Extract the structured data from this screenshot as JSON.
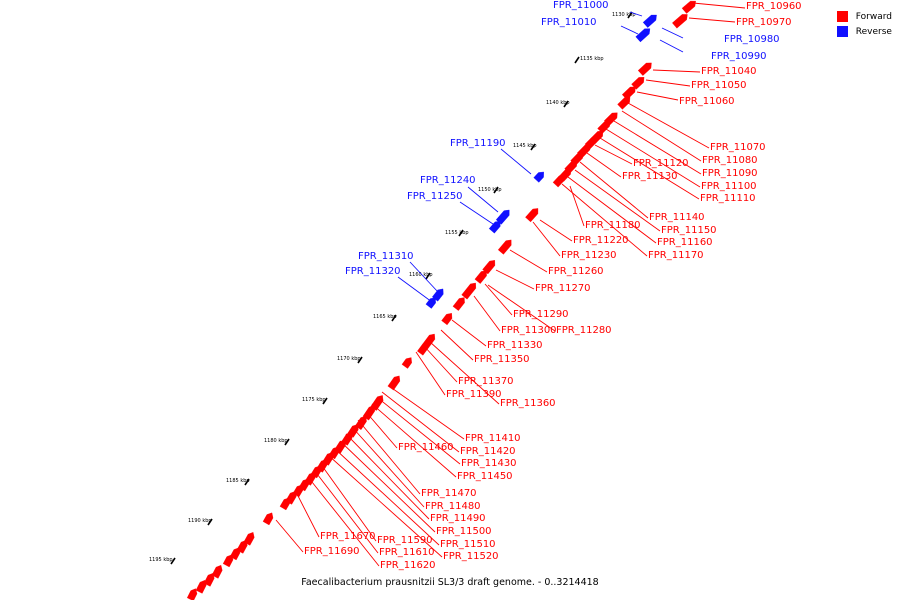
{
  "colors": {
    "forward": "#ff0000",
    "reverse": "#1010ff",
    "backbone": "#777777",
    "tick": "#000000"
  },
  "legend": {
    "forward_label": "Forward",
    "reverse_label": "Reverse"
  },
  "caption": "Faecalibacterium prausnitzii SL3/3 draft genome. - 0..3214418",
  "ticks": [
    {
      "label": "1130 kbp",
      "major": true
    },
    {
      "label": "1135 kbp",
      "major": true
    },
    {
      "label": "1140 kbp",
      "major": true
    },
    {
      "label": "1145 kbp",
      "major": true
    },
    {
      "label": "1150 kbp",
      "major": true
    },
    {
      "label": "1155 kbp",
      "major": true
    },
    {
      "label": "1160 kbp",
      "major": true
    },
    {
      "label": "1165 kbp",
      "major": true
    },
    {
      "label": "1170 kbp",
      "major": true
    },
    {
      "label": "1175 kbp",
      "major": true
    },
    {
      "label": "1180 kbp",
      "major": true
    },
    {
      "label": "1185 kbp",
      "major": true
    },
    {
      "label": "1190 kbp",
      "major": true
    },
    {
      "label": "1195 kbp",
      "major": true
    }
  ],
  "reverse_features": [
    {
      "label": "FPR_11000"
    },
    {
      "label": "FPR_11010"
    },
    {
      "label": "FPR_10980"
    },
    {
      "label": "FPR_10990"
    },
    {
      "label": "FPR_11190"
    },
    {
      "label": "FPR_11240"
    },
    {
      "label": "FPR_11250"
    },
    {
      "label": "FPR_11310"
    },
    {
      "label": "FPR_11320"
    }
  ],
  "forward_features": [
    {
      "label": "FPR_10960"
    },
    {
      "label": "FPR_10970"
    },
    {
      "label": "FPR_11040"
    },
    {
      "label": "FPR_11050"
    },
    {
      "label": "FPR_11060"
    },
    {
      "label": "FPR_11070"
    },
    {
      "label": "FPR_11080"
    },
    {
      "label": "FPR_11090"
    },
    {
      "label": "FPR_11100"
    },
    {
      "label": "FPR_11110"
    },
    {
      "label": "FPR_11120"
    },
    {
      "label": "FPR_11130"
    },
    {
      "label": "FPR_11140"
    },
    {
      "label": "FPR_11150"
    },
    {
      "label": "FPR_11160"
    },
    {
      "label": "FPR_11170"
    },
    {
      "label": "FPR_11180"
    },
    {
      "label": "FPR_11220"
    },
    {
      "label": "FPR_11230"
    },
    {
      "label": "FPR_11260"
    },
    {
      "label": "FPR_11270"
    },
    {
      "label": "FPR_11290"
    },
    {
      "label": "FPR_11300"
    },
    {
      "label": "FPR_11280"
    },
    {
      "label": "FPR_11330"
    },
    {
      "label": "FPR_11350"
    },
    {
      "label": "FPR_11370"
    },
    {
      "label": "FPR_11390"
    },
    {
      "label": "FPR_11360"
    },
    {
      "label": "FPR_11410"
    },
    {
      "label": "FPR_11420"
    },
    {
      "label": "FPR_11430"
    },
    {
      "label": "FPR_11450"
    },
    {
      "label": "FPR_11460"
    },
    {
      "label": "FPR_11470"
    },
    {
      "label": "FPR_11480"
    },
    {
      "label": "FPR_11490"
    },
    {
      "label": "FPR_11500"
    },
    {
      "label": "FPR_11510"
    },
    {
      "label": "FPR_11520"
    },
    {
      "label": "FPR_11590"
    },
    {
      "label": "FPR_11610"
    },
    {
      "label": "FPR_11620"
    },
    {
      "label": "FPR_11670"
    },
    {
      "label": "FPR_11690"
    }
  ]
}
